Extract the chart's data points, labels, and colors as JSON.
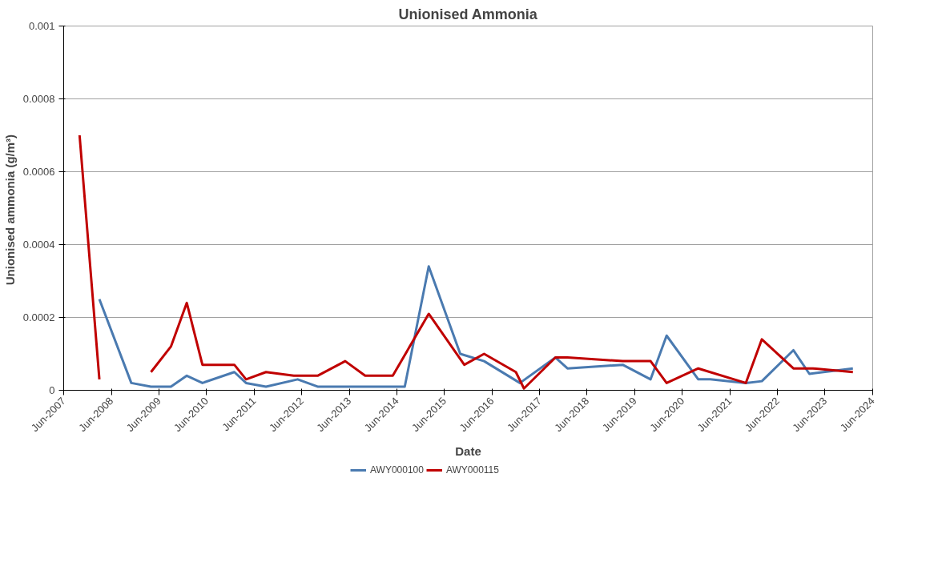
{
  "chart_data": {
    "type": "line",
    "title": "Unionised Ammonia",
    "xlabel": "Date",
    "ylabel": "Unionised ammonia  (g/m³)",
    "xlim": [
      "2007-06",
      "2024-06"
    ],
    "xticks": [
      {
        "value": "2007-06",
        "label": "Jun-2007"
      },
      {
        "value": "2008-06",
        "label": "Jun-2008"
      },
      {
        "value": "2009-06",
        "label": "Jun-2009"
      },
      {
        "value": "2010-06",
        "label": "Jun-2010"
      },
      {
        "value": "2011-06",
        "label": "Jun-2011"
      },
      {
        "value": "2012-06",
        "label": "Jun-2012"
      },
      {
        "value": "2013-06",
        "label": "Jun-2013"
      },
      {
        "value": "2014-06",
        "label": "Jun-2014"
      },
      {
        "value": "2015-06",
        "label": "Jun-2015"
      },
      {
        "value": "2016-06",
        "label": "Jun-2016"
      },
      {
        "value": "2017-06",
        "label": "Jun-2017"
      },
      {
        "value": "2018-06",
        "label": "Jun-2018"
      },
      {
        "value": "2019-06",
        "label": "Jun-2019"
      },
      {
        "value": "2020-06",
        "label": "Jun-2020"
      },
      {
        "value": "2021-06",
        "label": "Jun-2021"
      },
      {
        "value": "2022-06",
        "label": "Jun-2022"
      },
      {
        "value": "2023-06",
        "label": "Jun-2023"
      },
      {
        "value": "2024-06",
        "label": "Jun-2024"
      }
    ],
    "ylim": [
      0,
      0.001
    ],
    "yticks": [
      0,
      0.0002,
      0.0004,
      0.0006,
      0.0008,
      0.001
    ],
    "grid": "y",
    "legend": "bottom",
    "marker": "none",
    "line_style": "solid",
    "series": [
      {
        "name": "AWY000100",
        "color": "#4a7ab0",
        "x": [
          "2008-03",
          "2008-11",
          "2009-04",
          "2009-09",
          "2010-01",
          "2010-05",
          "2011-01",
          "2011-04",
          "2011-09",
          "2012-05",
          "2012-10",
          "2014-08",
          "2015-02",
          "2015-10",
          "2016-04",
          "2017-01",
          "2017-10",
          "2018-01",
          "2019-03",
          "2019-10",
          "2020-02",
          "2020-10",
          "2021-01",
          "2021-10",
          "2022-02",
          "2022-10",
          "2023-02",
          "2024-01"
        ],
        "values": [
          0.00025,
          2e-05,
          1e-05,
          1e-05,
          4e-05,
          2e-05,
          5e-05,
          2e-05,
          1e-05,
          3e-05,
          1e-05,
          1e-05,
          0.00034,
          0.0001,
          8e-05,
          2e-05,
          9e-05,
          6e-05,
          7e-05,
          3e-05,
          0.00015,
          3e-05,
          3e-05,
          2e-05,
          2.5e-05,
          0.00011,
          4.5e-05,
          6e-05
        ]
      },
      {
        "name": "AWY000115",
        "color": "#c00000",
        "x": [
          "2007-10",
          "2008-03",
          "2008-09",
          "2009-04",
          "2009-09",
          "2010-01",
          "2010-05",
          "2011-01",
          "2011-04",
          "2011-09",
          "2012-04",
          "2012-10",
          "2013-05",
          "2013-10",
          "2014-05",
          "2015-02",
          "2015-11",
          "2016-04",
          "2016-12",
          "2017-02",
          "2017-10",
          "2018-01",
          "2019-03",
          "2019-10",
          "2020-02",
          "2020-10",
          "2021-10",
          "2022-02",
          "2022-10",
          "2023-03",
          "2024-01"
        ],
        "values": [
          0.0007,
          3e-05,
          null,
          5e-05,
          0.00012,
          0.00024,
          7e-05,
          7e-05,
          3e-05,
          5e-05,
          4e-05,
          4e-05,
          8e-05,
          4e-05,
          4e-05,
          0.00021,
          7e-05,
          0.0001,
          5e-05,
          5e-06,
          9e-05,
          9e-05,
          8e-05,
          8e-05,
          2e-05,
          6e-05,
          2e-05,
          0.00014,
          6e-05,
          6e-05,
          5e-05
        ]
      }
    ]
  }
}
